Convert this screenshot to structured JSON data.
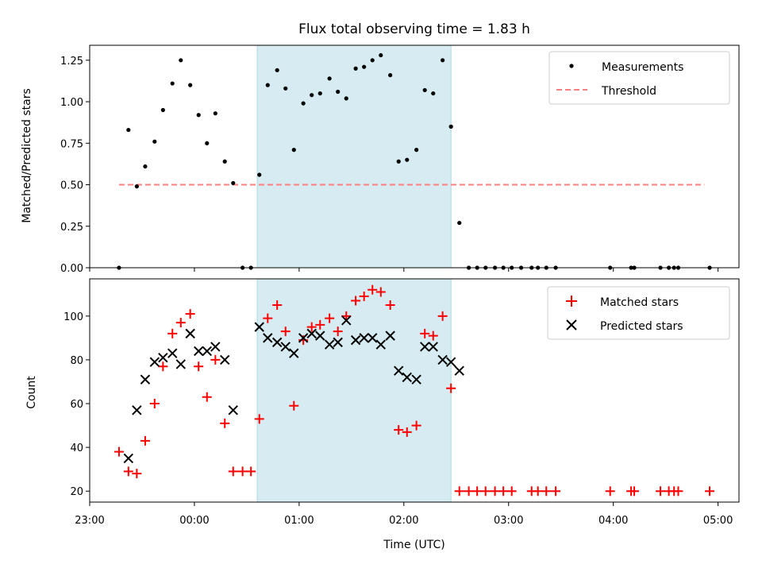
{
  "chart_data": [
    {
      "type": "scatter",
      "title": "Flux total observing time = 1.83 h",
      "xlabel": "",
      "ylabel": "Matched/Predicted stars",
      "xlim": [
        -1.0,
        5.2
      ],
      "ylim": [
        0,
        1.34
      ],
      "yticks": [
        0,
        0.25,
        0.5,
        0.75,
        1.0,
        1.25
      ],
      "ytick_labels": [
        "0.00",
        "0.25",
        "0.50",
        "0.75",
        "1.00",
        "1.25"
      ],
      "shaded_interval": [
        0.6,
        2.45
      ],
      "shade_color": "#add8e6",
      "legend_position": "top-right",
      "legend": [
        {
          "name": "Measurements",
          "marker": "dot",
          "color": "#000000"
        },
        {
          "name": "Threshold",
          "marker": "dashed-line",
          "color": "#ff7f7f"
        }
      ],
      "threshold": {
        "x": [
          -0.72,
          4.87
        ],
        "y": 0.5
      },
      "series": [
        {
          "name": "Measurements",
          "points": [
            [
              -0.72,
              0.0
            ],
            [
              -0.63,
              0.83
            ],
            [
              -0.55,
              0.49
            ],
            [
              -0.47,
              0.61
            ],
            [
              -0.38,
              0.76
            ],
            [
              -0.3,
              0.95
            ],
            [
              -0.21,
              1.11
            ],
            [
              -0.13,
              1.25
            ],
            [
              -0.04,
              1.1
            ],
            [
              0.04,
              0.92
            ],
            [
              0.12,
              0.75
            ],
            [
              0.2,
              0.93
            ],
            [
              0.29,
              0.64
            ],
            [
              0.37,
              0.51
            ],
            [
              0.46,
              0.0
            ],
            [
              0.54,
              0.0
            ],
            [
              0.62,
              0.56
            ],
            [
              0.7,
              1.1
            ],
            [
              0.79,
              1.19
            ],
            [
              0.87,
              1.08
            ],
            [
              0.95,
              0.71
            ],
            [
              1.04,
              0.99
            ],
            [
              1.12,
              1.04
            ],
            [
              1.2,
              1.05
            ],
            [
              1.29,
              1.14
            ],
            [
              1.37,
              1.06
            ],
            [
              1.45,
              1.02
            ],
            [
              1.54,
              1.2
            ],
            [
              1.62,
              1.21
            ],
            [
              1.7,
              1.25
            ],
            [
              1.78,
              1.28
            ],
            [
              1.87,
              1.16
            ],
            [
              1.95,
              0.64
            ],
            [
              2.03,
              0.65
            ],
            [
              2.12,
              0.71
            ],
            [
              2.2,
              1.07
            ],
            [
              2.28,
              1.05
            ],
            [
              2.37,
              1.25
            ],
            [
              2.45,
              0.85
            ],
            [
              2.53,
              0.27
            ],
            [
              2.62,
              0.0
            ],
            [
              2.7,
              0.0
            ],
            [
              2.78,
              0.0
            ],
            [
              2.87,
              0.0
            ],
            [
              2.95,
              0.0
            ],
            [
              3.03,
              0.0
            ],
            [
              3.12,
              0.0
            ],
            [
              3.22,
              0.0
            ],
            [
              3.28,
              0.0
            ],
            [
              3.36,
              0.0
            ],
            [
              3.45,
              0.0
            ],
            [
              3.97,
              0.0
            ],
            [
              4.17,
              0.0
            ],
            [
              4.2,
              0.0
            ],
            [
              4.45,
              0.0
            ],
            [
              4.53,
              0.0
            ],
            [
              4.58,
              0.0
            ],
            [
              4.62,
              0.0
            ],
            [
              4.92,
              0.0
            ]
          ]
        }
      ]
    },
    {
      "type": "scatter",
      "title": "",
      "xlabel": "Time (UTC)",
      "ylabel": "Count",
      "xlim": [
        -1.0,
        5.2
      ],
      "ylim": [
        15,
        117
      ],
      "yticks": [
        20,
        40,
        60,
        80,
        100
      ],
      "xticks": [
        -1,
        0,
        1,
        2,
        3,
        4,
        5
      ],
      "xtick_labels": [
        "23:00",
        "00:00",
        "01:00",
        "02:00",
        "03:00",
        "04:00",
        "05:00"
      ],
      "shaded_interval": [
        0.6,
        2.45
      ],
      "shade_color": "#add8e6",
      "legend_position": "top-right",
      "legend": [
        {
          "name": "Matched stars",
          "marker": "plus",
          "color": "#ff0000"
        },
        {
          "name": "Predicted stars",
          "marker": "x",
          "color": "#000000"
        }
      ],
      "series": [
        {
          "name": "Matched stars",
          "marker": "plus",
          "color": "#ff0000",
          "points": [
            [
              -0.72,
              38
            ],
            [
              -0.63,
              29
            ],
            [
              -0.55,
              28
            ],
            [
              -0.47,
              43
            ],
            [
              -0.38,
              60
            ],
            [
              -0.3,
              77
            ],
            [
              -0.21,
              92
            ],
            [
              -0.13,
              97
            ],
            [
              -0.04,
              101
            ],
            [
              0.04,
              77
            ],
            [
              0.12,
              63
            ],
            [
              0.2,
              80
            ],
            [
              0.29,
              51
            ],
            [
              0.37,
              29
            ],
            [
              0.46,
              29
            ],
            [
              0.54,
              29
            ],
            [
              0.62,
              53
            ],
            [
              0.7,
              99
            ],
            [
              0.79,
              105
            ],
            [
              0.87,
              93
            ],
            [
              0.95,
              59
            ],
            [
              1.04,
              89
            ],
            [
              1.12,
              95
            ],
            [
              1.2,
              96
            ],
            [
              1.29,
              99
            ],
            [
              1.37,
              93
            ],
            [
              1.45,
              100
            ],
            [
              1.54,
              107
            ],
            [
              1.62,
              109
            ],
            [
              1.7,
              112
            ],
            [
              1.78,
              111
            ],
            [
              1.87,
              105
            ],
            [
              1.95,
              48
            ],
            [
              2.03,
              47
            ],
            [
              2.12,
              50
            ],
            [
              2.2,
              92
            ],
            [
              2.28,
              91
            ],
            [
              2.37,
              100
            ],
            [
              2.45,
              67
            ],
            [
              2.53,
              20
            ],
            [
              2.62,
              20
            ],
            [
              2.7,
              20
            ],
            [
              2.78,
              20
            ],
            [
              2.87,
              20
            ],
            [
              2.95,
              20
            ],
            [
              3.03,
              20
            ],
            [
              3.22,
              20
            ],
            [
              3.28,
              20
            ],
            [
              3.36,
              20
            ],
            [
              3.45,
              20
            ],
            [
              3.97,
              20
            ],
            [
              4.17,
              20
            ],
            [
              4.2,
              20
            ],
            [
              4.45,
              20
            ],
            [
              4.53,
              20
            ],
            [
              4.58,
              20
            ],
            [
              4.62,
              20
            ],
            [
              4.92,
              20
            ]
          ]
        },
        {
          "name": "Predicted stars",
          "marker": "x",
          "color": "#000000",
          "points": [
            [
              -0.63,
              35
            ],
            [
              -0.55,
              57
            ],
            [
              -0.47,
              71
            ],
            [
              -0.38,
              79
            ],
            [
              -0.3,
              81
            ],
            [
              -0.21,
              83
            ],
            [
              -0.13,
              78
            ],
            [
              -0.04,
              92
            ],
            [
              0.04,
              84
            ],
            [
              0.12,
              84
            ],
            [
              0.2,
              86
            ],
            [
              0.29,
              80
            ],
            [
              0.37,
              57
            ],
            [
              0.62,
              95
            ],
            [
              0.7,
              90
            ],
            [
              0.79,
              88
            ],
            [
              0.87,
              86
            ],
            [
              0.95,
              83
            ],
            [
              1.04,
              90
            ],
            [
              1.12,
              92
            ],
            [
              1.2,
              91
            ],
            [
              1.29,
              87
            ],
            [
              1.37,
              88
            ],
            [
              1.45,
              98
            ],
            [
              1.54,
              89
            ],
            [
              1.62,
              90
            ],
            [
              1.7,
              90
            ],
            [
              1.78,
              87
            ],
            [
              1.87,
              91
            ],
            [
              1.95,
              75
            ],
            [
              2.03,
              72
            ],
            [
              2.12,
              71
            ],
            [
              2.2,
              86
            ],
            [
              2.28,
              86
            ],
            [
              2.37,
              80
            ],
            [
              2.45,
              79
            ],
            [
              2.53,
              75
            ]
          ]
        }
      ]
    }
  ]
}
